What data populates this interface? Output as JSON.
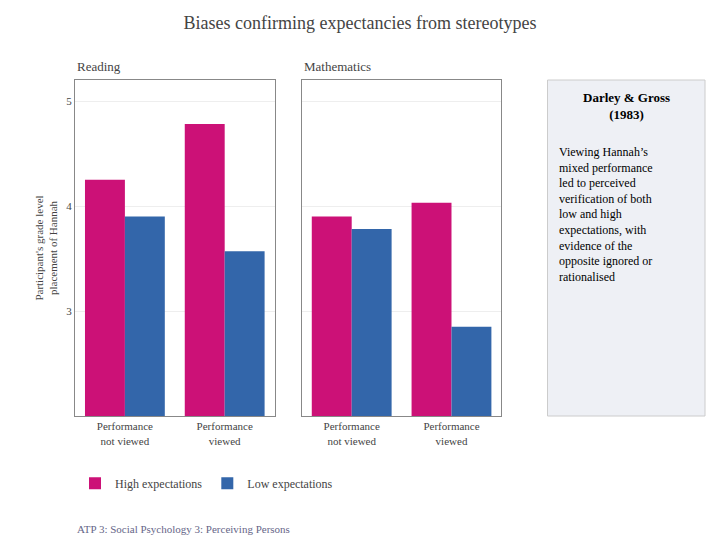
{
  "title": "Biases confirming expectancies from stereotypes",
  "panel_title": [
    "Darley & Gross",
    "(1983)"
  ],
  "panel_lines": [
    "Viewing Hannah’s",
    "mixed performance",
    "led to perceived",
    "verification of both",
    "low and high",
    "expectations, with",
    "evidence of the",
    "opposite ignored or",
    "rationalised"
  ],
  "footer": "ATP 3: Social Psychology 3: Perceiving Persons",
  "chart_data": [
    {
      "type": "bar",
      "title": "Reading",
      "categories": [
        "Performance\nnot viewed",
        "Performance\nviewed"
      ],
      "series": [
        {
          "name": "High expectations",
          "color": "#cc1177",
          "values": [
            4.25,
            4.78
          ]
        },
        {
          "name": "Low expectations",
          "color": "#3366aa",
          "values": [
            3.9,
            3.57
          ]
        }
      ],
      "ylabel": "Participant's grade level\nplacement of Hannah",
      "ylim": [
        2.0,
        5.2
      ],
      "yticks": [
        3,
        4,
        5
      ],
      "grid": true,
      "legend": "bottom"
    },
    {
      "type": "bar",
      "title": "Mathematics",
      "categories": [
        "Performance\nnot viewed",
        "Performance\nviewed"
      ],
      "series": [
        {
          "name": "High expectations",
          "color": "#cc1177",
          "values": [
            3.9,
            4.03
          ]
        },
        {
          "name": "Low expectations",
          "color": "#3366aa",
          "values": [
            3.78,
            2.85
          ]
        }
      ],
      "ylim": [
        2.0,
        5.2
      ],
      "yticks": [
        3,
        4,
        5
      ],
      "grid": true,
      "tick_labels": "x"
    }
  ]
}
